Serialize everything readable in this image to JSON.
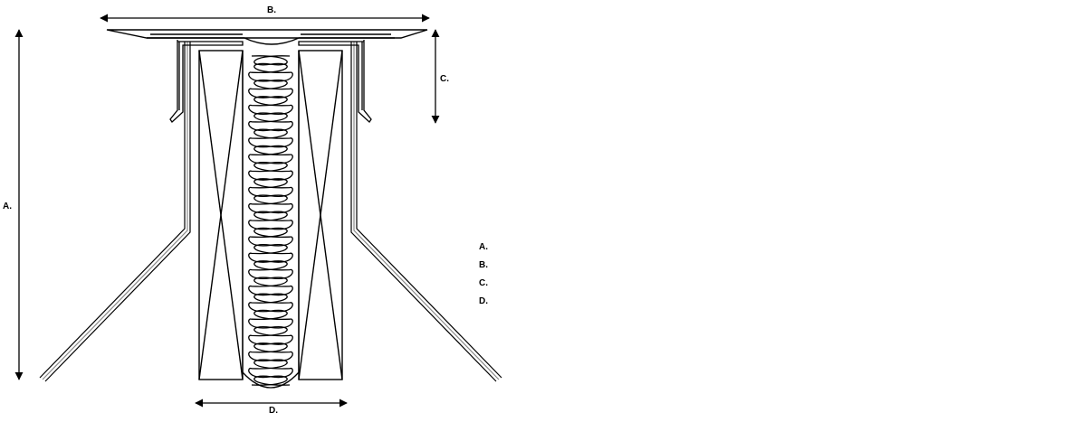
{
  "dimensions": {
    "a": "A.",
    "b": "B.",
    "c": "C.",
    "d": "D."
  },
  "legend": [
    "A.",
    "B.",
    "C.",
    "D."
  ],
  "colors": {
    "line": "#000000",
    "flashing_inner": "#888888",
    "background": "#ffffff"
  }
}
